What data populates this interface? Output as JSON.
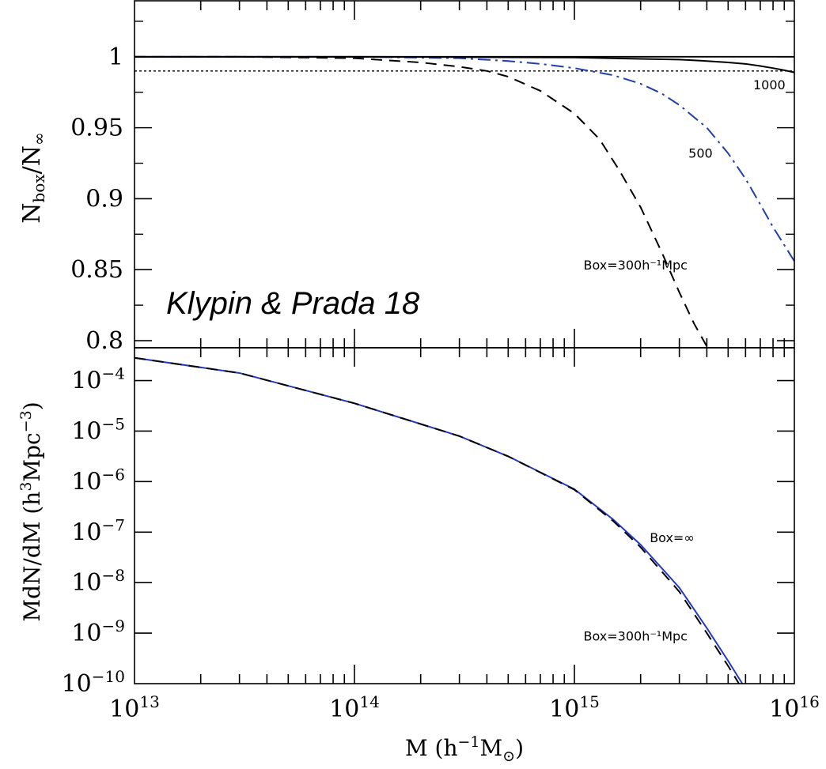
{
  "chart_data": [
    {
      "type": "line",
      "panel": "top",
      "x_scale": "log",
      "xlim": [
        10000000000000.0,
        1e+16
      ],
      "ylim": [
        0.795,
        1.04
      ],
      "ylabel": {
        "main": "N",
        "sub1": "box",
        "mid": "/N",
        "sub2": "∞"
      },
      "y_ticks": [
        {
          "value": 0.8,
          "label": "0.8"
        },
        {
          "value": 0.85,
          "label": "0.85"
        },
        {
          "value": 0.9,
          "label": "0.9"
        },
        {
          "value": 0.95,
          "label": "0.95"
        },
        {
          "value": 1.0,
          "label": "1"
        }
      ],
      "reference_lines": [
        {
          "value": 1.0,
          "style": "solid",
          "color": "#000000"
        },
        {
          "value": 0.99,
          "style": "dotted",
          "color": "#000000"
        }
      ],
      "series": [
        {
          "name": "Box=300h⁻¹Mpc",
          "style": "dashed",
          "color": "#000000",
          "x": [
            10000000000000.0,
            30000000000000.0,
            100000000000000.0,
            200000000000000.0,
            300000000000000.0,
            400000000000000.0,
            500000000000000.0,
            700000000000000.0,
            1000000000000000.0,
            1300000000000000.0,
            1600000000000000.0,
            2000000000000000.0,
            2500000000000000.0,
            3000000000000000.0,
            3500000000000000.0,
            4000000000000000.0
          ],
          "y": [
            1.0,
            1.0,
            0.999,
            0.996,
            0.993,
            0.99,
            0.986,
            0.976,
            0.96,
            0.942,
            0.92,
            0.894,
            0.862,
            0.834,
            0.812,
            0.796
          ]
        },
        {
          "name": "500",
          "style": "dashdot",
          "color": "#1f3fb0",
          "x": [
            10000000000000.0,
            100000000000000.0,
            300000000000000.0,
            500000000000000.0,
            700000000000000.0,
            1000000000000000.0,
            1500000000000000.0,
            2000000000000000.0,
            2500000000000000.0,
            3000000000000000.0,
            4000000000000000.0,
            5000000000000000.0,
            6000000000000000.0,
            7000000000000000.0,
            8000000000000000.0,
            1e+16
          ],
          "y": [
            1.0,
            1.0,
            0.999,
            0.997,
            0.995,
            0.992,
            0.987,
            0.981,
            0.974,
            0.966,
            0.95,
            0.932,
            0.914,
            0.896,
            0.88,
            0.856
          ]
        },
        {
          "name": "1000",
          "style": "solid",
          "color": "#000000",
          "x": [
            10000000000000.0,
            100000000000000.0,
            1000000000000000.0,
            2000000000000000.0,
            3000000000000000.0,
            4000000000000000.0,
            5000000000000000.0,
            6000000000000000.0,
            7000000000000000.0,
            8000000000000000.0,
            9000000000000000.0,
            1e+16
          ],
          "y": [
            1.0,
            1.0,
            0.9995,
            0.9985,
            0.998,
            0.997,
            0.996,
            0.995,
            0.9935,
            0.992,
            0.9905,
            0.989
          ]
        }
      ],
      "labels": [
        {
          "text": "1000",
          "x": 6500000000000000.0,
          "y": 0.977
        },
        {
          "text": "500",
          "x": 3300000000000000.0,
          "y": 0.929
        },
        {
          "text": "Box=300h⁻¹Mpc",
          "x": 1100000000000000.0,
          "y": 0.85
        }
      ]
    },
    {
      "type": "line",
      "panel": "bottom",
      "x_scale": "log",
      "y_scale": "log",
      "xlim": [
        10000000000000.0,
        1e+16
      ],
      "ylim_log10": [
        -10,
        -3.35
      ],
      "xlabel": {
        "a": "M  (h",
        "sup": "−1",
        "b": "M",
        "sub": "⊙",
        "c": ")"
      },
      "ylabel": {
        "a": "MdN/dM  (h",
        "sup1": "3",
        "b": "Mpc",
        "sup2": "−3",
        "c": ")"
      },
      "x_ticks": [
        {
          "value": 10000000000000.0,
          "base": "10",
          "exp": "13"
        },
        {
          "value": 100000000000000.0,
          "base": "10",
          "exp": "14"
        },
        {
          "value": 1000000000000000.0,
          "base": "10",
          "exp": "15"
        },
        {
          "value": 1e+16,
          "base": "10",
          "exp": "16"
        }
      ],
      "y_ticks": [
        {
          "log10": -10,
          "base": "10",
          "exp": "−10"
        },
        {
          "log10": -9,
          "base": "10",
          "exp": "−9"
        },
        {
          "log10": -8,
          "base": "10",
          "exp": "−8"
        },
        {
          "log10": -7,
          "base": "10",
          "exp": "−7"
        },
        {
          "log10": -6,
          "base": "10",
          "exp": "−6"
        },
        {
          "log10": -5,
          "base": "10",
          "exp": "−5"
        },
        {
          "log10": -4,
          "base": "10",
          "exp": "−4"
        }
      ],
      "series": [
        {
          "name": "Box=∞",
          "style": "solid",
          "color": "#2338c8",
          "x": [
            10000000000000.0,
            30000000000000.0,
            100000000000000.0,
            300000000000000.0,
            500000000000000.0,
            1000000000000000.0,
            1500000000000000.0,
            2000000000000000.0,
            3000000000000000.0,
            4000000000000000.0,
            5000000000000000.0,
            5800000000000000.0
          ],
          "y_log10": [
            -3.55,
            -3.85,
            -4.45,
            -5.1,
            -5.5,
            -6.15,
            -6.75,
            -7.25,
            -8.1,
            -8.9,
            -9.55,
            -10.0
          ]
        },
        {
          "name": "Box=300h⁻¹Mpc",
          "style": "dashed",
          "color": "#000000",
          "x": [
            10000000000000.0,
            30000000000000.0,
            100000000000000.0,
            300000000000000.0,
            500000000000000.0,
            1000000000000000.0,
            1500000000000000.0,
            2000000000000000.0,
            3000000000000000.0,
            4000000000000000.0,
            5000000000000000.0,
            5600000000000000.0
          ],
          "y_log10": [
            -3.55,
            -3.85,
            -4.45,
            -5.1,
            -5.5,
            -6.16,
            -6.78,
            -7.3,
            -8.18,
            -9.0,
            -9.65,
            -10.0
          ]
        }
      ],
      "labels": [
        {
          "text": "Box=∞",
          "x": 2200000000000000.0,
          "y_log10": -7.2
        },
        {
          "text": "Box=300h⁻¹Mpc",
          "x": 1100000000000000.0,
          "y_log10": -9.15
        }
      ]
    }
  ],
  "annotation": {
    "text": "Klypin & Prada 18"
  }
}
